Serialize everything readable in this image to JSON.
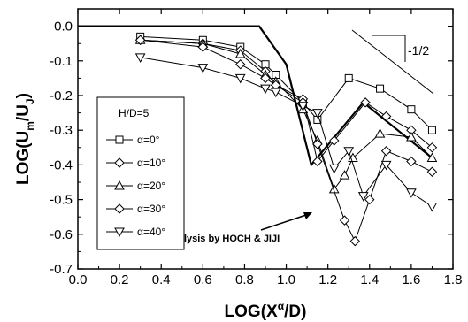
{
  "chart_data": {
    "type": "line",
    "xlabel_main": "LOG(X",
    "xlabel_sup": "α",
    "xlabel_end": "/D)",
    "ylabel_main": "LOG(U",
    "ylabel_sub1": "m",
    "ylabel_mid": "/U",
    "ylabel_sub2": "J",
    "ylabel_end": ")",
    "xlim": [
      0.0,
      1.8
    ],
    "ylim": [
      -0.7,
      0.05
    ],
    "xticks": [
      0.0,
      0.2,
      0.4,
      0.6,
      0.8,
      1.0,
      1.2,
      1.4,
      1.6,
      1.8
    ],
    "xtick_labels": [
      "0.0",
      "0.2",
      "0.4",
      "0.6",
      "0.8",
      "1.0",
      "1.2",
      "1.4",
      "1.6",
      "1.8"
    ],
    "yticks": [
      0.0,
      -0.1,
      -0.2,
      -0.3,
      -0.4,
      -0.5,
      -0.6,
      -0.7
    ],
    "ytick_labels": [
      "0.0",
      "-0.1",
      "-0.2",
      "-0.3",
      "-0.4",
      "-0.5",
      "-0.6",
      "-0.7"
    ],
    "legend_title": "H/D=5",
    "series": [
      {
        "name": "α=0°",
        "marker": "square",
        "x": [
          0.3,
          0.6,
          0.78,
          0.9,
          0.95,
          1.08,
          1.15,
          1.3,
          1.45,
          1.6,
          1.7
        ],
        "y": [
          -0.03,
          -0.04,
          -0.06,
          -0.11,
          -0.14,
          -0.22,
          -0.27,
          -0.15,
          -0.18,
          -0.24,
          -0.3
        ]
      },
      {
        "name": "α=10°",
        "marker": "diamond",
        "x": [
          0.3,
          0.6,
          0.78,
          0.9,
          0.95,
          1.08,
          1.15,
          1.23,
          1.38,
          1.48,
          1.6,
          1.7
        ],
        "y": [
          -0.04,
          -0.05,
          -0.07,
          -0.13,
          -0.17,
          -0.21,
          -0.39,
          -0.33,
          -0.22,
          -0.26,
          -0.3,
          -0.35
        ]
      },
      {
        "name": "α=20°",
        "marker": "triangle-up",
        "x": [
          0.3,
          0.6,
          0.78,
          0.9,
          0.95,
          1.08,
          1.15,
          1.23,
          1.28,
          1.32,
          1.45,
          1.6,
          1.7
        ],
        "y": [
          -0.04,
          -0.05,
          -0.08,
          -0.14,
          -0.16,
          -0.24,
          -0.33,
          -0.47,
          -0.43,
          -0.38,
          -0.31,
          -0.32,
          -0.38
        ]
      },
      {
        "name": "α=30°",
        "marker": "diamond",
        "x": [
          0.3,
          0.6,
          0.78,
          0.9,
          0.95,
          1.08,
          1.15,
          1.28,
          1.33,
          1.4,
          1.48,
          1.6,
          1.7
        ],
        "y": [
          -0.04,
          -0.06,
          -0.11,
          -0.15,
          -0.17,
          -0.22,
          -0.34,
          -0.56,
          -0.62,
          -0.5,
          -0.36,
          -0.39,
          -0.42
        ]
      },
      {
        "name": "α=40°",
        "marker": "triangle-down",
        "x": [
          0.3,
          0.6,
          0.78,
          0.9,
          0.95,
          1.08,
          1.15,
          1.23,
          1.3,
          1.37,
          1.48,
          1.6,
          1.7
        ],
        "y": [
          -0.09,
          -0.12,
          -0.15,
          -0.18,
          -0.19,
          -0.23,
          -0.25,
          -0.41,
          -0.36,
          -0.49,
          -0.4,
          -0.48,
          -0.52
        ]
      }
    ],
    "theory_line": {
      "x": [
        0.0,
        0.87,
        1.0,
        1.12,
        1.37,
        1.7
      ],
      "y": [
        0.0,
        0.0,
        -0.11,
        -0.4,
        -0.22,
        -0.38
      ]
    },
    "annotation": "analysis by HOCH & JIJI",
    "slope_label": "-1/2"
  }
}
